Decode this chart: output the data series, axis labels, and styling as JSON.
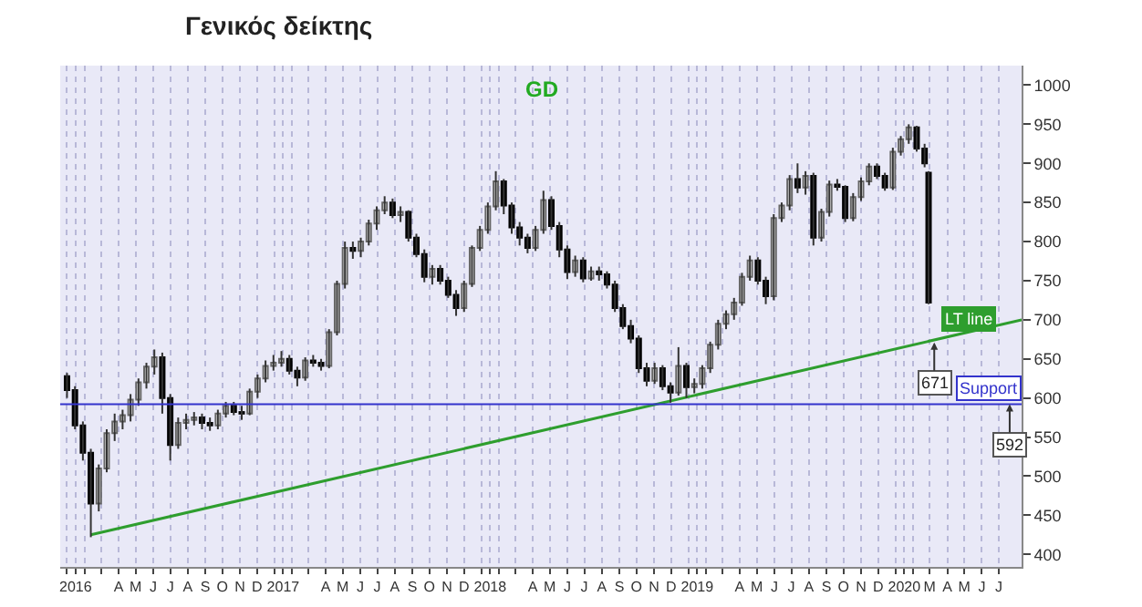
{
  "chart_data": {
    "type": "candlestick",
    "title": "Γενικός δείκτης",
    "subtitle": "GD",
    "series": [
      {
        "type": "line",
        "name": "LT line",
        "color": "#2e9e2e",
        "x": [
          "2016-02-12",
          "2020-08-10"
        ],
        "values": [
          425,
          700
        ]
      },
      {
        "x": [
          "2016-01-01",
          "2016-01-15",
          "2016-01-29",
          "2016-02-12",
          "2016-02-26",
          "2016-03-11",
          "2016-03-25",
          "2016-04-08",
          "2016-04-22",
          "2016-05-06",
          "2016-05-20",
          "2016-06-03",
          "2016-06-17",
          "2016-07-01",
          "2016-07-15",
          "2016-07-29",
          "2016-08-12",
          "2016-08-26",
          "2016-09-09",
          "2016-09-23",
          "2016-10-07",
          "2016-10-21",
          "2016-11-04",
          "2016-11-18",
          "2016-12-02",
          "2016-12-16",
          "2016-12-30",
          "2017-01-13",
          "2017-01-27",
          "2017-02-10",
          "2017-02-24",
          "2017-03-10",
          "2017-03-24",
          "2017-04-07",
          "2017-04-21",
          "2017-05-05",
          "2017-05-19",
          "2017-06-02",
          "2017-06-16",
          "2017-06-30",
          "2017-07-14",
          "2017-07-28",
          "2017-08-11",
          "2017-08-25",
          "2017-09-08",
          "2017-09-22",
          "2017-10-06",
          "2017-10-20",
          "2017-11-03",
          "2017-11-17",
          "2017-12-01",
          "2017-12-15",
          "2017-12-29",
          "2018-01-12",
          "2018-01-26",
          "2018-02-09",
          "2018-02-23",
          "2018-03-09",
          "2018-03-23",
          "2018-04-06",
          "2018-04-20",
          "2018-05-04",
          "2018-05-18",
          "2018-06-01",
          "2018-06-15",
          "2018-06-29",
          "2018-07-13",
          "2018-07-27",
          "2018-08-10",
          "2018-08-24",
          "2018-09-07",
          "2018-09-21",
          "2018-10-05",
          "2018-10-19",
          "2018-11-02",
          "2018-11-16",
          "2018-11-30",
          "2018-12-14",
          "2018-12-28",
          "2019-01-11",
          "2019-01-25",
          "2019-02-08",
          "2019-02-22",
          "2019-03-08",
          "2019-03-22",
          "2019-04-05",
          "2019-04-19",
          "2019-05-03",
          "2019-05-17",
          "2019-05-31",
          "2019-06-14",
          "2019-06-28",
          "2019-07-12",
          "2019-07-26",
          "2019-08-09",
          "2019-08-23",
          "2019-09-06",
          "2019-09-20",
          "2019-10-04",
          "2019-10-18",
          "2019-11-01",
          "2019-11-15",
          "2019-11-29",
          "2019-12-13",
          "2019-12-27",
          "2020-01-10",
          "2020-01-24",
          "2020-02-07",
          "2020-02-21",
          "2020-02-28"
        ],
        "ohlc": [
          [
            628,
            632,
            600,
            610
          ],
          [
            610,
            615,
            560,
            565
          ],
          [
            565,
            570,
            520,
            530
          ],
          [
            530,
            535,
            422,
            465
          ],
          [
            465,
            515,
            455,
            510
          ],
          [
            510,
            560,
            505,
            555
          ],
          [
            555,
            580,
            545,
            570
          ],
          [
            570,
            585,
            560,
            578
          ],
          [
            578,
            605,
            570,
            598
          ],
          [
            598,
            625,
            590,
            620
          ],
          [
            620,
            645,
            612,
            640
          ],
          [
            640,
            662,
            630,
            652
          ],
          [
            652,
            658,
            580,
            600
          ],
          [
            600,
            605,
            520,
            540
          ],
          [
            540,
            575,
            535,
            568
          ],
          [
            568,
            580,
            560,
            572
          ],
          [
            572,
            582,
            565,
            575
          ],
          [
            575,
            580,
            560,
            568
          ],
          [
            568,
            575,
            558,
            565
          ],
          [
            565,
            585,
            560,
            580
          ],
          [
            580,
            595,
            575,
            590
          ],
          [
            590,
            595,
            578,
            582
          ],
          [
            582,
            590,
            572,
            580
          ],
          [
            580,
            612,
            578,
            608
          ],
          [
            608,
            630,
            600,
            625
          ],
          [
            625,
            648,
            620,
            641
          ],
          [
            641,
            655,
            635,
            645
          ],
          [
            645,
            660,
            640,
            650
          ],
          [
            650,
            655,
            630,
            635
          ],
          [
            635,
            640,
            615,
            626
          ],
          [
            626,
            652,
            622,
            648
          ],
          [
            648,
            655,
            640,
            645
          ],
          [
            645,
            650,
            635,
            641
          ],
          [
            641,
            688,
            638,
            684
          ],
          [
            684,
            750,
            680,
            746
          ],
          [
            746,
            800,
            740,
            792
          ],
          [
            792,
            800,
            778,
            788
          ],
          [
            788,
            805,
            780,
            800
          ],
          [
            800,
            828,
            795,
            823
          ],
          [
            823,
            845,
            815,
            840
          ],
          [
            840,
            858,
            835,
            850
          ],
          [
            850,
            855,
            830,
            834
          ],
          [
            834,
            845,
            825,
            838
          ],
          [
            838,
            840,
            800,
            805
          ],
          [
            805,
            810,
            780,
            784
          ],
          [
            784,
            790,
            748,
            755
          ],
          [
            755,
            770,
            745,
            765
          ],
          [
            765,
            770,
            745,
            750
          ],
          [
            750,
            755,
            728,
            732
          ],
          [
            732,
            738,
            705,
            715
          ],
          [
            715,
            750,
            710,
            746
          ],
          [
            746,
            795,
            742,
            792
          ],
          [
            792,
            820,
            788,
            815
          ],
          [
            815,
            850,
            810,
            845
          ],
          [
            845,
            890,
            840,
            877
          ],
          [
            877,
            880,
            835,
            846
          ],
          [
            846,
            850,
            810,
            818
          ],
          [
            818,
            825,
            795,
            805
          ],
          [
            805,
            810,
            785,
            792
          ],
          [
            792,
            820,
            788,
            815
          ],
          [
            815,
            865,
            810,
            853
          ],
          [
            853,
            858,
            815,
            820
          ],
          [
            820,
            825,
            780,
            790
          ],
          [
            790,
            795,
            752,
            761
          ],
          [
            761,
            782,
            755,
            776
          ],
          [
            776,
            780,
            748,
            753
          ],
          [
            753,
            768,
            750,
            762
          ],
          [
            762,
            768,
            750,
            758
          ],
          [
            758,
            762,
            740,
            745
          ],
          [
            745,
            750,
            710,
            715
          ],
          [
            715,
            720,
            688,
            692
          ],
          [
            692,
            700,
            670,
            676
          ],
          [
            676,
            680,
            632,
            638
          ],
          [
            638,
            645,
            615,
            622
          ],
          [
            622,
            645,
            618,
            638
          ],
          [
            638,
            642,
            610,
            615
          ],
          [
            615,
            620,
            594,
            607
          ],
          [
            607,
            665,
            603,
            641
          ],
          [
            641,
            645,
            600,
            614
          ],
          [
            614,
            625,
            606,
            618
          ],
          [
            618,
            642,
            612,
            638
          ],
          [
            638,
            672,
            632,
            668
          ],
          [
            668,
            700,
            662,
            695
          ],
          [
            695,
            712,
            688,
            707
          ],
          [
            707,
            728,
            700,
            722
          ],
          [
            722,
            760,
            718,
            755
          ],
          [
            755,
            782,
            750,
            776
          ],
          [
            776,
            780,
            745,
            750
          ],
          [
            750,
            755,
            720,
            730
          ],
          [
            730,
            835,
            725,
            830
          ],
          [
            830,
            850,
            825,
            846
          ],
          [
            846,
            885,
            840,
            880
          ],
          [
            880,
            900,
            862,
            869
          ],
          [
            869,
            890,
            860,
            884
          ],
          [
            884,
            888,
            795,
            805
          ],
          [
            805,
            842,
            800,
            838
          ],
          [
            838,
            878,
            832,
            873
          ],
          [
            873,
            880,
            865,
            870
          ],
          [
            870,
            872,
            825,
            830
          ],
          [
            830,
            862,
            826,
            857
          ],
          [
            857,
            882,
            852,
            877
          ],
          [
            877,
            900,
            872,
            896
          ],
          [
            896,
            900,
            880,
            884
          ],
          [
            884,
            888,
            865,
            869
          ],
          [
            869,
            920,
            866,
            915
          ],
          [
            915,
            935,
            910,
            931
          ],
          [
            931,
            950,
            925,
            946
          ],
          [
            946,
            948,
            915,
            919
          ],
          [
            919,
            925,
            895,
            900
          ],
          [
            888,
            890,
            720,
            722
          ]
        ]
      }
    ],
    "xlim": [
      "2015-12-20",
      "2020-08-10"
    ],
    "xticks": [
      {
        "value": "2016-01-01",
        "label": null
      },
      {
        "value": "2016-01-16",
        "label": "2016"
      },
      {
        "value": "2016-02-01",
        "label": null
      },
      {
        "value": "2016-03-01",
        "label": null
      },
      {
        "value": "2016-04-01",
        "label": "A"
      },
      {
        "value": "2016-05-01",
        "label": "M"
      },
      {
        "value": "2016-06-01",
        "label": "J"
      },
      {
        "value": "2016-07-01",
        "label": "J"
      },
      {
        "value": "2016-08-01",
        "label": "A"
      },
      {
        "value": "2016-09-01",
        "label": "S"
      },
      {
        "value": "2016-10-01",
        "label": "O"
      },
      {
        "value": "2016-11-01",
        "label": "N"
      },
      {
        "value": "2016-12-01",
        "label": "D"
      },
      {
        "value": "2017-01-01",
        "label": null
      },
      {
        "value": "2017-01-16",
        "label": "2017"
      },
      {
        "value": "2017-02-01",
        "label": null
      },
      {
        "value": "2017-03-01",
        "label": null
      },
      {
        "value": "2017-04-01",
        "label": "A"
      },
      {
        "value": "2017-05-01",
        "label": "M"
      },
      {
        "value": "2017-06-01",
        "label": "J"
      },
      {
        "value": "2017-07-01",
        "label": "J"
      },
      {
        "value": "2017-08-01",
        "label": "A"
      },
      {
        "value": "2017-09-01",
        "label": "S"
      },
      {
        "value": "2017-10-01",
        "label": "O"
      },
      {
        "value": "2017-11-01",
        "label": "N"
      },
      {
        "value": "2017-12-01",
        "label": "D"
      },
      {
        "value": "2018-01-01",
        "label": null
      },
      {
        "value": "2018-01-16",
        "label": "2018"
      },
      {
        "value": "2018-02-01",
        "label": null
      },
      {
        "value": "2018-03-01",
        "label": null
      },
      {
        "value": "2018-04-01",
        "label": "A"
      },
      {
        "value": "2018-05-01",
        "label": "M"
      },
      {
        "value": "2018-06-01",
        "label": "J"
      },
      {
        "value": "2018-07-01",
        "label": "J"
      },
      {
        "value": "2018-08-01",
        "label": "A"
      },
      {
        "value": "2018-09-01",
        "label": "S"
      },
      {
        "value": "2018-10-01",
        "label": "O"
      },
      {
        "value": "2018-11-01",
        "label": "N"
      },
      {
        "value": "2018-12-01",
        "label": "D"
      },
      {
        "value": "2019-01-01",
        "label": null
      },
      {
        "value": "2019-01-16",
        "label": "2019"
      },
      {
        "value": "2019-02-01",
        "label": null
      },
      {
        "value": "2019-03-01",
        "label": null
      },
      {
        "value": "2019-04-01",
        "label": "A"
      },
      {
        "value": "2019-05-01",
        "label": "M"
      },
      {
        "value": "2019-06-01",
        "label": "J"
      },
      {
        "value": "2019-07-01",
        "label": "J"
      },
      {
        "value": "2019-08-01",
        "label": "A"
      },
      {
        "value": "2019-09-01",
        "label": "S"
      },
      {
        "value": "2019-10-01",
        "label": "O"
      },
      {
        "value": "2019-11-01",
        "label": "N"
      },
      {
        "value": "2019-12-01",
        "label": "D"
      },
      {
        "value": "2020-01-01",
        "label": null
      },
      {
        "value": "2020-01-16",
        "label": "2020"
      },
      {
        "value": "2020-02-01",
        "label": null
      },
      {
        "value": "2020-03-01",
        "label": "M"
      },
      {
        "value": "2020-04-01",
        "label": "A"
      },
      {
        "value": "2020-05-01",
        "label": "M"
      },
      {
        "value": "2020-06-01",
        "label": "J"
      },
      {
        "value": "2020-07-01",
        "label": "J"
      }
    ],
    "ylim": [
      384,
      1025
    ],
    "yticks": [
      400,
      450,
      500,
      550,
      600,
      650,
      700,
      750,
      800,
      850,
      900,
      950,
      1000
    ],
    "ref_lines": [
      {
        "axis": "y",
        "value": 592,
        "label": "Support",
        "color": "#3333cc"
      }
    ],
    "annotations": [
      {
        "text": "592",
        "x": "2020-07-20",
        "y": 592
      },
      {
        "text": "671",
        "x": "2020-03-09",
        "y": 671
      }
    ],
    "grid": "x"
  }
}
